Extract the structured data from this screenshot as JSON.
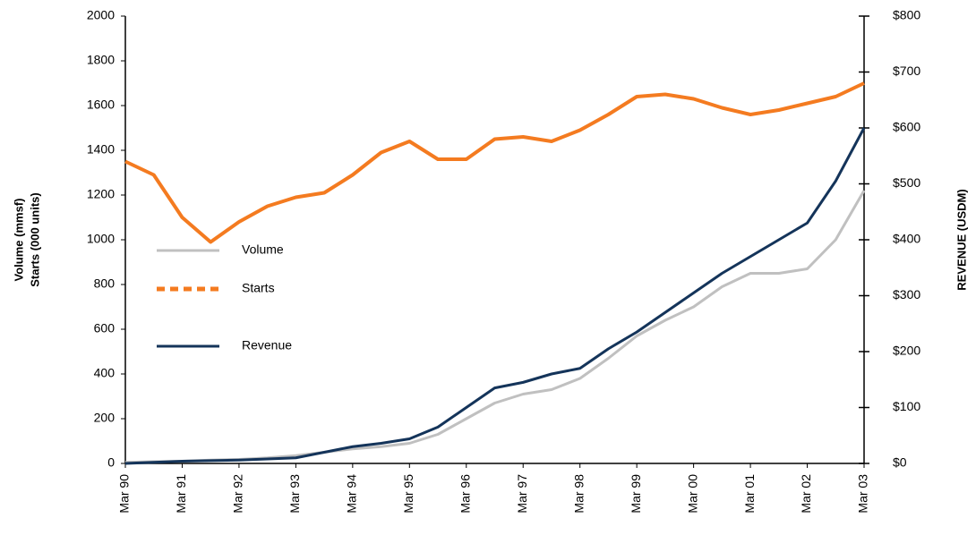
{
  "chart_data": {
    "type": "line",
    "ylabel": [
      "Volume (mmsf)",
      "Starts (000 units)"
    ],
    "y2label": "REVENUE (USDM)",
    "categories": [
      "Mar 90",
      null,
      "Mar 91",
      null,
      "Mar 92",
      null,
      "Mar 93",
      null,
      "Mar 94",
      null,
      "Mar 95",
      null,
      "Mar 96",
      null,
      "Mar 97",
      null,
      "Mar 98",
      null,
      "Mar 99",
      null,
      "Mar 00",
      null,
      "Mar 01",
      null,
      "Mar 02",
      null,
      "Mar 03"
    ],
    "series": [
      {
        "name": "Volume",
        "color": "#c0c0c0",
        "dash": "solid",
        "values": [
          5,
          8,
          10,
          15,
          18,
          25,
          35,
          50,
          65,
          75,
          90,
          130,
          200,
          270,
          310,
          330,
          380,
          470,
          570,
          640,
          700,
          790,
          850,
          850,
          870,
          1000,
          1220
        ]
      },
      {
        "name": "Starts",
        "color": "#f47b20",
        "dash": "dashed",
        "values": [
          1350,
          1290,
          1100,
          990,
          1080,
          1150,
          1190,
          1210,
          1290,
          1390,
          1440,
          1360,
          1360,
          1450,
          1460,
          1440,
          1490,
          1560,
          1640,
          1650,
          1630,
          1590,
          1560,
          1580,
          1610,
          1640,
          1700
        ]
      },
      {
        "name": "Revenue",
        "color": "#14345a",
        "dash": "solid",
        "axis": "y2",
        "values": [
          0,
          2,
          4,
          5,
          6,
          8,
          10,
          20,
          30,
          36,
          44,
          65,
          100,
          135,
          145,
          160,
          170,
          205,
          235,
          270,
          305,
          340,
          370,
          400,
          430,
          505,
          600
        ]
      }
    ],
    "ylim": [
      0,
      2000
    ],
    "yticks": [
      0,
      200,
      400,
      600,
      800,
      1000,
      1200,
      1400,
      1600,
      1800,
      2000
    ],
    "y2lim": [
      0,
      800
    ],
    "y2ticks": [
      {
        "value": 0,
        "label": "$0"
      },
      {
        "value": 100,
        "label": "$100"
      },
      {
        "value": 200,
        "label": "$200"
      },
      {
        "value": 300,
        "label": "$300"
      },
      {
        "value": 400,
        "label": "$400"
      },
      {
        "value": 500,
        "label": "$500"
      },
      {
        "value": 600,
        "label": "$600"
      },
      {
        "value": 700,
        "label": "$700"
      },
      {
        "value": 800,
        "label": "$800"
      }
    ],
    "grid": false,
    "legend": "left"
  }
}
